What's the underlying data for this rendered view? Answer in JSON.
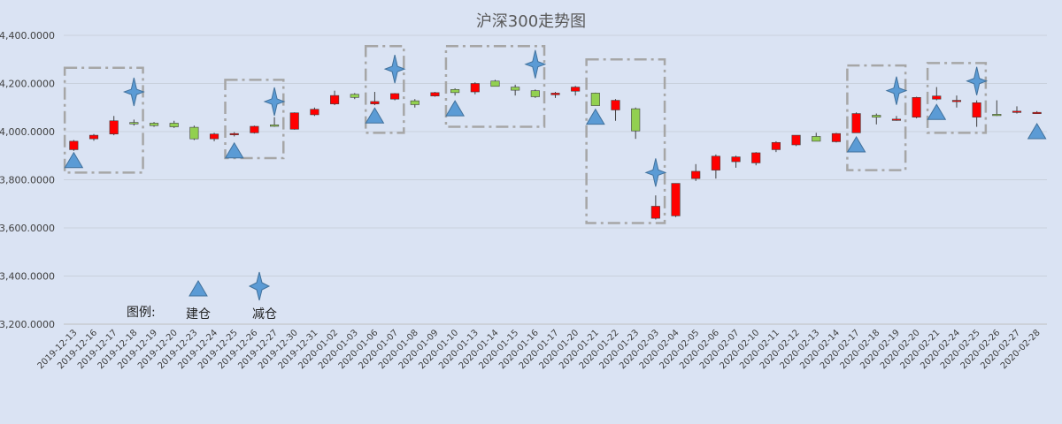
{
  "chart_data": {
    "type": "candlestick",
    "title": "沪深300走势图",
    "ylim": [
      3200,
      4400
    ],
    "y_ticks": [
      3200,
      3400,
      3600,
      3800,
      4000,
      4200,
      4400
    ],
    "y_tick_labels": [
      "3,200.0000",
      "3,400.0000",
      "3,600.0000",
      "3,800.0000",
      "4,000.0000",
      "4,200.0000",
      "4,400.0000"
    ],
    "grid": true,
    "colors": {
      "up": "#ff0000",
      "down": "#92d050",
      "marker": "#5b9bd5",
      "box": "#a6a6a6"
    },
    "categories": [
      "2019-12-13",
      "2019-12-16",
      "2019-12-17",
      "2019-12-18",
      "2019-12-19",
      "2019-12-20",
      "2019-12-23",
      "2019-12-24",
      "2019-12-25",
      "2019-12-26",
      "2019-12-27",
      "2019-12-30",
      "2019-12-31",
      "2020-01-02",
      "2020-01-03",
      "2020-01-06",
      "2020-01-07",
      "2020-01-08",
      "2020-01-09",
      "2020-01-10",
      "2020-01-13",
      "2020-01-14",
      "2020-01-15",
      "2020-01-16",
      "2020-01-17",
      "2020-01-20",
      "2020-01-21",
      "2020-01-22",
      "2020-01-23",
      "2020-02-03",
      "2020-02-04",
      "2020-02-05",
      "2020-02-06",
      "2020-02-07",
      "2020-02-10",
      "2020-02-11",
      "2020-02-12",
      "2020-02-13",
      "2020-02-14",
      "2020-02-17",
      "2020-02-18",
      "2020-02-19",
      "2020-02-20",
      "2020-02-21",
      "2020-02-24",
      "2020-02-25",
      "2020-02-26",
      "2020-02-27",
      "2020-02-28"
    ],
    "ohlc": [
      [
        3925,
        3965,
        3920,
        3960
      ],
      [
        3970,
        3990,
        3962,
        3985
      ],
      [
        3990,
        4065,
        3985,
        4045
      ],
      [
        4038,
        4050,
        4025,
        4032
      ],
      [
        4035,
        4040,
        4020,
        4025
      ],
      [
        4035,
        4045,
        4015,
        4020
      ],
      [
        4018,
        4025,
        3965,
        3970
      ],
      [
        3970,
        3995,
        3960,
        3990
      ],
      [
        3988,
        3998,
        3980,
        3992
      ],
      [
        3995,
        4025,
        3992,
        4022
      ],
      [
        4028,
        4060,
        4020,
        4022
      ],
      [
        4010,
        4080,
        4008,
        4078
      ],
      [
        4070,
        4100,
        4065,
        4093
      ],
      [
        4115,
        4170,
        4110,
        4150
      ],
      [
        4155,
        4160,
        4135,
        4142
      ],
      [
        4115,
        4165,
        4110,
        4125
      ],
      [
        4135,
        4160,
        4130,
        4158
      ],
      [
        4128,
        4135,
        4100,
        4112
      ],
      [
        4148,
        4165,
        4145,
        4162
      ],
      [
        4175,
        4180,
        4150,
        4162
      ],
      [
        4165,
        4205,
        4155,
        4200
      ],
      [
        4210,
        4215,
        4190,
        4188
      ],
      [
        4185,
        4195,
        4150,
        4172
      ],
      [
        4170,
        4175,
        4140,
        4145
      ],
      [
        4153,
        4165,
        4140,
        4160
      ],
      [
        4168,
        4190,
        4150,
        4185
      ],
      [
        4160,
        4162,
        4110,
        4108
      ],
      [
        4090,
        4135,
        4045,
        4130
      ],
      [
        4095,
        4100,
        3970,
        4003
      ],
      [
        3640,
        3735,
        3635,
        3690
      ],
      [
        3650,
        3785,
        3645,
        3785
      ],
      [
        3805,
        3865,
        3795,
        3835
      ],
      [
        3840,
        3905,
        3805,
        3898
      ],
      [
        3875,
        3900,
        3850,
        3895
      ],
      [
        3870,
        3915,
        3860,
        3912
      ],
      [
        3925,
        3960,
        3915,
        3955
      ],
      [
        3945,
        3985,
        3940,
        3985
      ],
      [
        3980,
        3995,
        3960,
        3960
      ],
      [
        3958,
        3995,
        3955,
        3992
      ],
      [
        3995,
        4080,
        3995,
        4075
      ],
      [
        4068,
        4075,
        4030,
        4060
      ],
      [
        4050,
        4065,
        4045,
        4052
      ],
      [
        4060,
        4145,
        4055,
        4142
      ],
      [
        4135,
        4185,
        4130,
        4148
      ],
      [
        4125,
        4150,
        4100,
        4130
      ],
      [
        4060,
        4130,
        4020,
        4120
      ],
      [
        4072,
        4130,
        4065,
        4070
      ],
      [
        4080,
        4105,
        4075,
        4085
      ],
      [
        4080,
        4085,
        4075,
        4080
      ]
    ],
    "build_markers": [
      {
        "category": "2019-12-13",
        "value": 3880
      },
      {
        "category": "2019-12-25",
        "value": 3920
      },
      {
        "category": "2020-01-06",
        "value": 4065
      },
      {
        "category": "2020-01-10",
        "value": 4095
      },
      {
        "category": "2020-01-21",
        "value": 4060
      },
      {
        "category": "2020-02-17",
        "value": 3945
      },
      {
        "category": "2020-02-21",
        "value": 4080
      },
      {
        "category": "2020-02-28",
        "value": 4000
      }
    ],
    "reduce_markers": [
      {
        "category": "2019-12-18",
        "value": 4165
      },
      {
        "category": "2019-12-27",
        "value": 4125
      },
      {
        "category": "2020-01-07",
        "value": 4260
      },
      {
        "category": "2020-01-16",
        "value": 4280
      },
      {
        "category": "2020-02-03",
        "value": 3830
      },
      {
        "category": "2020-02-19",
        "value": 4170
      },
      {
        "category": "2020-02-25",
        "value": 4210
      }
    ],
    "highlight_boxes": [
      {
        "from": "2019-12-13",
        "to": "2019-12-18",
        "low": 3830,
        "high": 4265
      },
      {
        "from": "2019-12-25",
        "to": "2019-12-27",
        "low": 3890,
        "high": 4215
      },
      {
        "from": "2020-01-06",
        "to": "2020-01-07",
        "low": 3995,
        "high": 4355
      },
      {
        "from": "2020-01-10",
        "to": "2020-01-16",
        "low": 4020,
        "high": 4355
      },
      {
        "from": "2020-01-21",
        "to": "2020-02-03",
        "low": 3620,
        "high": 4300
      },
      {
        "from": "2020-02-17",
        "to": "2020-02-19",
        "low": 3840,
        "high": 4275
      },
      {
        "from": "2020-02-21",
        "to": "2020-02-25",
        "low": 3995,
        "high": 4285
      }
    ],
    "legend": {
      "label": "图例:",
      "build_label": "建仓",
      "reduce_label": "减仓",
      "build_icon": "triangle-icon",
      "reduce_icon": "four-point-star-icon",
      "placement": "bottom-left"
    }
  }
}
